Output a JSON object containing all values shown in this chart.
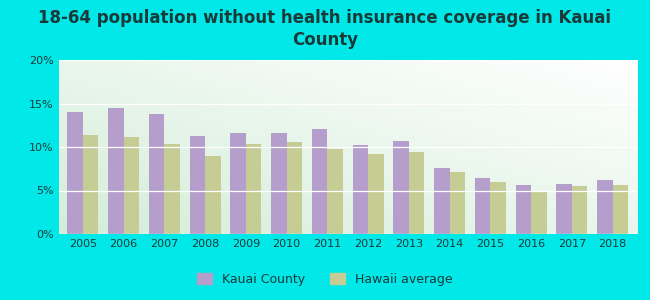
{
  "title": "18-64 population without health insurance coverage in Kauai\nCounty",
  "years": [
    2005,
    2006,
    2007,
    2008,
    2009,
    2010,
    2011,
    2012,
    2013,
    2014,
    2015,
    2016,
    2017,
    2018
  ],
  "kauai": [
    14.0,
    14.5,
    13.8,
    11.3,
    11.6,
    11.6,
    12.1,
    10.2,
    10.7,
    7.6,
    6.4,
    5.6,
    5.7,
    6.2
  ],
  "hawaii": [
    11.4,
    11.1,
    10.3,
    9.0,
    10.3,
    10.6,
    9.8,
    9.2,
    9.4,
    7.1,
    6.0,
    4.9,
    5.5,
    5.6
  ],
  "kauai_color": "#b59dcc",
  "hawaii_color": "#c5cc94",
  "background_color": "#00e8e8",
  "ylim": [
    0,
    20
  ],
  "yticks": [
    0,
    5,
    10,
    15,
    20
  ],
  "ytick_labels": [
    "0%",
    "5%",
    "10%",
    "15%",
    "20%"
  ],
  "bar_width": 0.38,
  "legend_kauai": "Kauai County",
  "legend_hawaii": "Hawaii average",
  "title_fontsize": 12,
  "tick_fontsize": 8,
  "legend_fontsize": 9,
  "title_color": "#1a3a3a"
}
